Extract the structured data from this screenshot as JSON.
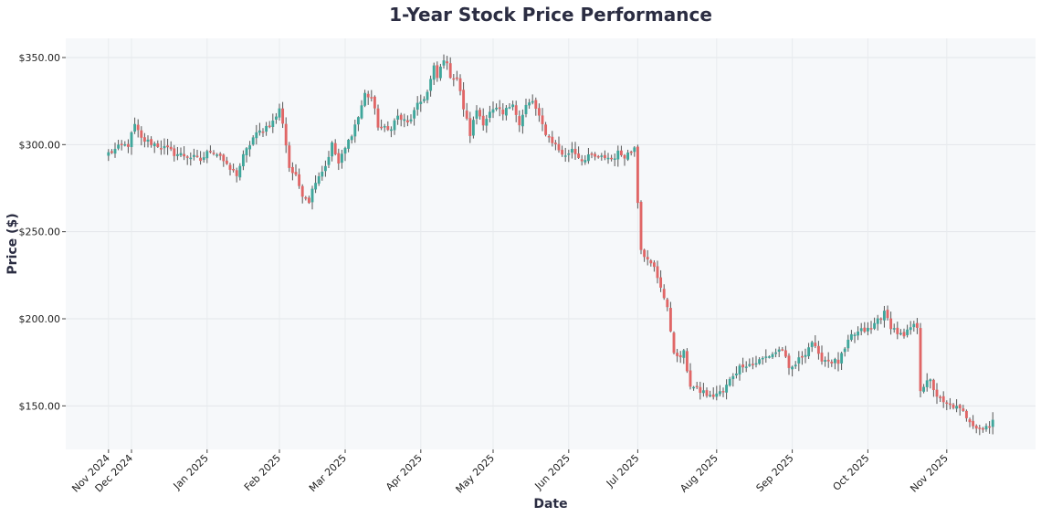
{
  "chart_data": {
    "type": "candlestick",
    "title": "1-Year Stock Price Performance",
    "xlabel": "Date",
    "ylabel": "Price ($)",
    "ylim": [
      125,
      361
    ],
    "yticks": [
      {
        "value": 150,
        "label": "$150.00"
      },
      {
        "value": 200,
        "label": "$200.00"
      },
      {
        "value": 250,
        "label": "$250.00"
      },
      {
        "value": 300,
        "label": "$300.00"
      },
      {
        "value": 350,
        "label": "$350.00"
      }
    ],
    "xticks": [
      {
        "day": 0,
        "label": "Nov 2024"
      },
      {
        "day": 7,
        "label": "Dec 2024"
      },
      {
        "day": 30,
        "label": "Jan 2025"
      },
      {
        "day": 52,
        "label": "Feb 2025"
      },
      {
        "day": 72,
        "label": "Mar 2025"
      },
      {
        "day": 95,
        "label": "Apr 2025"
      },
      {
        "day": 117,
        "label": "May 2025"
      },
      {
        "day": 140,
        "label": "Jun 2025"
      },
      {
        "day": 161,
        "label": "Jul 2025"
      },
      {
        "day": 185,
        "label": "Aug 2025"
      },
      {
        "day": 208,
        "label": "Sep 2025"
      },
      {
        "day": 231,
        "label": "Oct 2025"
      },
      {
        "day": 255,
        "label": "Nov 2025"
      }
    ],
    "x_day_range": [
      -13,
      282
    ],
    "up_color": "#3fa69b",
    "down_color": "#e06666",
    "wick_color": "#555555",
    "background": "#f6f8fa",
    "grid": true,
    "anchors": [
      [
        0,
        295
      ],
      [
        2,
        297
      ],
      [
        4,
        299
      ],
      [
        6,
        300
      ],
      [
        8,
        311
      ],
      [
        10,
        303
      ],
      [
        13,
        301
      ],
      [
        16,
        299
      ],
      [
        20,
        295
      ],
      [
        25,
        293
      ],
      [
        28,
        291
      ],
      [
        31,
        297
      ],
      [
        34,
        294
      ],
      [
        36,
        287
      ],
      [
        39,
        283
      ],
      [
        41,
        293
      ],
      [
        44,
        304
      ],
      [
        47,
        309
      ],
      [
        50,
        313
      ],
      [
        52,
        320
      ],
      [
        53,
        313
      ],
      [
        55,
        287
      ],
      [
        57,
        281
      ],
      [
        59,
        272
      ],
      [
        61,
        268
      ],
      [
        63,
        280
      ],
      [
        66,
        288
      ],
      [
        68,
        300
      ],
      [
        70,
        289
      ],
      [
        73,
        302
      ],
      [
        76,
        316
      ],
      [
        78,
        329
      ],
      [
        80,
        327
      ],
      [
        82,
        311
      ],
      [
        85,
        308
      ],
      [
        88,
        316
      ],
      [
        91,
        312
      ],
      [
        94,
        322
      ],
      [
        97,
        330
      ],
      [
        99,
        344
      ],
      [
        100,
        338
      ],
      [
        102,
        350
      ],
      [
        104,
        340
      ],
      [
        106,
        338
      ],
      [
        108,
        321
      ],
      [
        110,
        306
      ],
      [
        112,
        320
      ],
      [
        114,
        313
      ],
      [
        116,
        318
      ],
      [
        118,
        320
      ],
      [
        120,
        317
      ],
      [
        123,
        325
      ],
      [
        125,
        311
      ],
      [
        127,
        322
      ],
      [
        129,
        325
      ],
      [
        131,
        315
      ],
      [
        133,
        307
      ],
      [
        135,
        302
      ],
      [
        137,
        297
      ],
      [
        139,
        293
      ],
      [
        141,
        298
      ],
      [
        143,
        293
      ],
      [
        145,
        291
      ],
      [
        147,
        294
      ],
      [
        149,
        292
      ],
      [
        151,
        293
      ],
      [
        153,
        292
      ],
      [
        155,
        295
      ],
      [
        157,
        294
      ],
      [
        159,
        296
      ],
      [
        160,
        300
      ],
      [
        161,
        268
      ],
      [
        162,
        241
      ],
      [
        164,
        233
      ],
      [
        166,
        229
      ],
      [
        168,
        219
      ],
      [
        170,
        205
      ],
      [
        172,
        182
      ],
      [
        173,
        177
      ],
      [
        175,
        180
      ],
      [
        177,
        162
      ],
      [
        179,
        159
      ],
      [
        181,
        158
      ],
      [
        183,
        155
      ],
      [
        185,
        157
      ],
      [
        187,
        158
      ],
      [
        190,
        168
      ],
      [
        193,
        174
      ],
      [
        196,
        174
      ],
      [
        199,
        177
      ],
      [
        202,
        180
      ],
      [
        205,
        183
      ],
      [
        207,
        170
      ],
      [
        209,
        174
      ],
      [
        212,
        181
      ],
      [
        214,
        187
      ],
      [
        216,
        178
      ],
      [
        219,
        176
      ],
      [
        222,
        175
      ],
      [
        224,
        182
      ],
      [
        226,
        190
      ],
      [
        229,
        193
      ],
      [
        232,
        194
      ],
      [
        234,
        200
      ],
      [
        236,
        203
      ],
      [
        238,
        196
      ],
      [
        240,
        192
      ],
      [
        242,
        189
      ],
      [
        244,
        195
      ],
      [
        246,
        196
      ],
      [
        247,
        160
      ],
      [
        248,
        162
      ],
      [
        250,
        164
      ],
      [
        252,
        156
      ],
      [
        254,
        151
      ],
      [
        257,
        150
      ],
      [
        260,
        146
      ],
      [
        262,
        142
      ],
      [
        264,
        138
      ],
      [
        266,
        137
      ],
      [
        268,
        140
      ],
      [
        269,
        142
      ]
    ]
  }
}
